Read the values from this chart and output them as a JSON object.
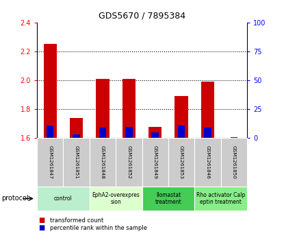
{
  "title": "GDS5670 / 7895384",
  "samples": [
    "GSM1261847",
    "GSM1261851",
    "GSM1261848",
    "GSM1261852",
    "GSM1261849",
    "GSM1261853",
    "GSM1261846",
    "GSM1261850"
  ],
  "red_values": [
    2.25,
    1.74,
    2.01,
    2.01,
    1.68,
    1.89,
    1.99,
    1.6
  ],
  "blue_percentiles": [
    11.0,
    3.0,
    9.0,
    9.5,
    5.0,
    11.0,
    9.0,
    1.0
  ],
  "ylim_left": [
    1.6,
    2.4
  ],
  "ylim_right": [
    0,
    100
  ],
  "yticks_left": [
    1.6,
    1.8,
    2.0,
    2.2,
    2.4
  ],
  "yticks_right": [
    0,
    25,
    50,
    75,
    100
  ],
  "protocol_groups": [
    {
      "label": "control",
      "cols": [
        0,
        1
      ],
      "color": "#bbeecc"
    },
    {
      "label": "EphA2-overexpres\nsion",
      "cols": [
        2,
        3
      ],
      "color": "#ddffd0"
    },
    {
      "label": "Ilomastat\ntreatment",
      "cols": [
        4,
        5
      ],
      "color": "#44cc55"
    },
    {
      "label": "Rho activator Calp\neptin treatment",
      "cols": [
        6,
        7
      ],
      "color": "#88ee88"
    }
  ],
  "bar_width": 0.5,
  "red_color": "#cc0000",
  "blue_color": "#0000cc",
  "base_value": 1.6,
  "bg_color": "#ffffff",
  "sample_bg_color": "#cccccc",
  "legend_red_label": "transformed count",
  "legend_blue_label": "percentile rank within the sample"
}
